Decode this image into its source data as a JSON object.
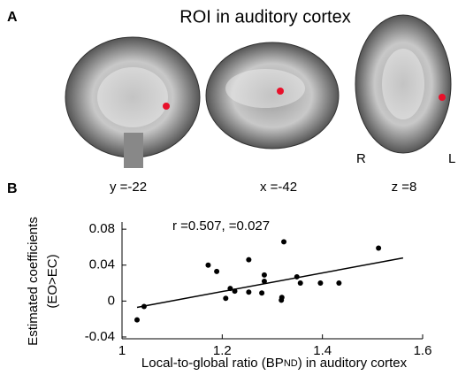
{
  "panel_a": "A",
  "panel_b": "B",
  "roi_title": "ROI in auditory cortex",
  "slices": [
    {
      "label": "y =-22"
    },
    {
      "label": "x =-42"
    },
    {
      "label": "z =8"
    }
  ],
  "orientation": {
    "right": "R",
    "left": "L"
  },
  "chart_data": {
    "type": "scatter",
    "annotation": "r =0.507,  =0.027",
    "y_label": [
      "Estimated coefficients",
      "(EO>EC)"
    ],
    "x_label": [
      "Local-to-global ratio (BP",
      "ND",
      ") in auditory cortex"
    ],
    "x": [
      1.03,
      1.044,
      1.172,
      1.189,
      1.207,
      1.216,
      1.225,
      1.253,
      1.253,
      1.279,
      1.284,
      1.284,
      1.318,
      1.319,
      1.323,
      1.349,
      1.356,
      1.396,
      1.433,
      1.512
    ],
    "values": [
      -0.021,
      -0.006,
      0.04,
      0.033,
      0.003,
      0.014,
      0.011,
      0.01,
      0.046,
      0.009,
      0.022,
      0.029,
      0.001,
      0.004,
      0.066,
      0.027,
      0.02,
      0.02,
      0.02,
      0.059
    ],
    "color": "#000000",
    "fit_line": {
      "x": [
        1.03,
        1.561
      ],
      "y": [
        -0.007,
        0.048
      ]
    },
    "xlim": [
      1,
      1.6
    ],
    "xticks": [
      1,
      1.2,
      1.4,
      1.6
    ],
    "ylim": [
      -0.042,
      0.088
    ],
    "yticks": [
      0.08,
      0.04,
      0,
      -0.04
    ]
  }
}
